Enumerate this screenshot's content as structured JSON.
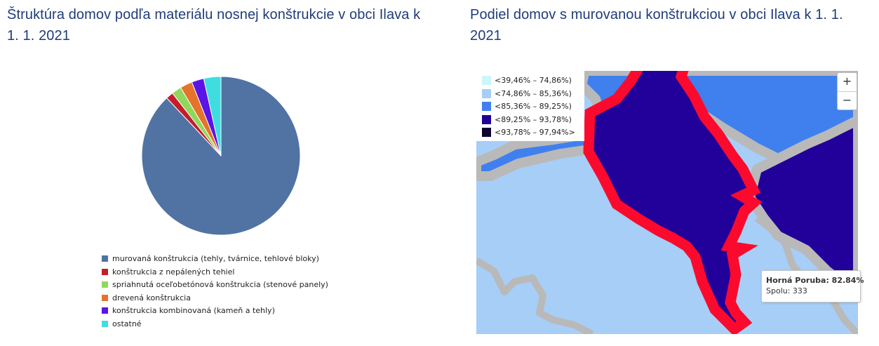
{
  "pie_chart": {
    "title": "Štruktúra domov podľa materiálu nosnej konštrukcie v obci Ilava k 1. 1. 2021"
  },
  "map_chart": {
    "title": "Podiel domov s murovanou konštrukciou v obci Ilava k 1. 1. 2021",
    "legend": [
      {
        "label": "<39,46% – 74,86%)",
        "color": "#cdf6fb"
      },
      {
        "label": "<74,86% – 85,36%)",
        "color": "#a6cef7"
      },
      {
        "label": "<85,36% – 89,25%)",
        "color": "#4080ee"
      },
      {
        "label": "<89,25% – 93,78%)",
        "color": "#22009a"
      },
      {
        "label": "<93,78% – 97,94%>",
        "color": "#0f0130"
      }
    ],
    "zoom_in_label": "+",
    "zoom_out_label": "−",
    "tooltip": {
      "name_value": "Horná Poruba: 82.84%",
      "total": "Spolu: 333"
    },
    "colors": {
      "light_blue": "#a6cef7",
      "mid_blue": "#4080ee",
      "dark_blue": "#22009a",
      "border_gray": "#b9b9b9",
      "highlight_red": "#fb0a2e"
    }
  },
  "chart_data": [
    {
      "type": "pie",
      "title": "Štruktúra domov podľa materiálu nosnej konštrukcie v obci Ilava k 1. 1. 2021",
      "legend_position": "bottom",
      "series": [
        {
          "name": "murovaná konštrukcia (tehly, tvárnice, tehlové bloky)",
          "value": 88.0,
          "color": "#5073a4"
        },
        {
          "name": "konštrukcia z nepálených tehiel",
          "value": 1.5,
          "color": "#c61c2b"
        },
        {
          "name": "spriahnutá oceľobetónová konštrukcia (stenové panely)",
          "value": 2.0,
          "color": "#8ed95a"
        },
        {
          "name": "drevená konštrukcia",
          "value": 2.5,
          "color": "#e5742a"
        },
        {
          "name": "konštrukcia kombinovaná (kameň a tehly)",
          "value": 2.5,
          "color": "#5b14e6"
        },
        {
          "name": "ostatné",
          "value": 3.5,
          "color": "#3fdde0"
        }
      ]
    }
  ]
}
